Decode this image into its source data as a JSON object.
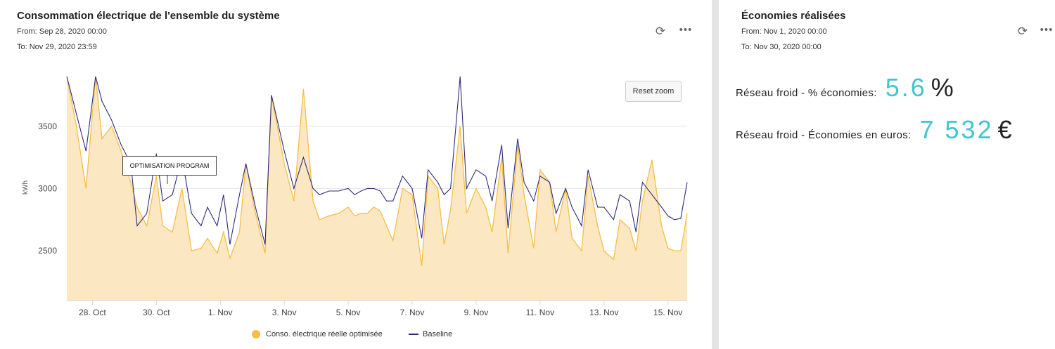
{
  "left_panel": {
    "title": "Consommation électrique de l'ensemble du système",
    "from": "From: Sep 28, 2020 00:00",
    "to": "To: Nov 29, 2020 23:59",
    "refresh_icon": "refresh-icon",
    "more_icon": "more-icon",
    "reset_zoom_label": "Reset zoom",
    "annotation_label": "OPTIMISATION PROGRAM"
  },
  "right_panel": {
    "title": "Économies réalisées",
    "from": "From: Nov 1, 2020 00:00",
    "to": "To: Nov 30, 2020 00:00",
    "kpis": [
      {
        "label": "Réseau froid - % économies:",
        "value": "5.6",
        "unit": "%"
      },
      {
        "label": "Réseau froid - Économies en euros:",
        "value": "7 532",
        "unit": "€"
      }
    ]
  },
  "colors": {
    "optimized_fill": "#fbe7c1",
    "optimized_line": "#f5bf47",
    "baseline": "#2e2a78",
    "accent": "#3fc6cf"
  },
  "chart_data": {
    "type": "area",
    "ylabel": "kWh",
    "yticks": [
      2500,
      3000,
      3500
    ],
    "ylim": [
      2100,
      3950
    ],
    "xticks": [
      "28. Oct",
      "30. Oct",
      "1. Nov",
      "3. Nov",
      "5. Nov",
      "7. Nov",
      "9. Nov",
      "11. Nov",
      "13. Nov",
      "15. Nov"
    ],
    "x_tick_days": [
      1,
      3,
      5,
      7,
      9,
      11,
      13,
      15,
      17,
      19
    ],
    "xlim": [
      0.2,
      19.6
    ],
    "legend_position": "bottom-center",
    "series": [
      {
        "name": "Conso. électrique réelle optimisée",
        "type": "area",
        "x": [
          0.2,
          0.5,
          0.8,
          1.1,
          1.3,
          1.6,
          1.9,
          2.2,
          2.4,
          2.7,
          3.0,
          3.2,
          3.5,
          3.8,
          4.1,
          4.4,
          4.6,
          4.9,
          5.1,
          5.3,
          5.6,
          5.8,
          6.1,
          6.4,
          6.6,
          7.0,
          7.3,
          7.6,
          7.9,
          8.1,
          8.4,
          8.7,
          9.0,
          9.2,
          9.4,
          9.6,
          9.8,
          10.0,
          10.2,
          10.4,
          10.7,
          11.0,
          11.3,
          11.5,
          11.8,
          12.0,
          12.2,
          12.5,
          12.7,
          13.0,
          13.3,
          13.5,
          13.8,
          14.0,
          14.3,
          14.5,
          14.8,
          15.0,
          15.3,
          15.5,
          15.8,
          16.0,
          16.3,
          16.5,
          16.8,
          17.0,
          17.3,
          17.5,
          17.8,
          18.0,
          18.2,
          18.5,
          18.8,
          19.0,
          19.2,
          19.4,
          19.6
        ],
        "values": [
          3900,
          3500,
          3000,
          3900,
          3400,
          3500,
          3300,
          3050,
          2850,
          2700,
          3100,
          2700,
          2650,
          3000,
          2500,
          2520,
          2600,
          2480,
          2650,
          2440,
          2650,
          3200,
          2800,
          2480,
          3750,
          3200,
          2900,
          3800,
          2900,
          2750,
          2780,
          2800,
          2850,
          2780,
          2800,
          2800,
          2850,
          2820,
          2700,
          2580,
          3000,
          2950,
          2380,
          3100,
          3000,
          2550,
          2830,
          3500,
          2800,
          3000,
          2850,
          2650,
          3250,
          2480,
          3350,
          2950,
          2520,
          3150,
          3050,
          2650,
          3000,
          2600,
          2500,
          3100,
          2700,
          2500,
          2430,
          2750,
          2680,
          2500,
          2900,
          3230,
          2700,
          2520,
          2500,
          2500,
          2800
        ]
      },
      {
        "name": "Baseline",
        "type": "line",
        "x": [
          0.2,
          0.5,
          0.8,
          1.1,
          1.3,
          1.6,
          1.9,
          2.2,
          2.4,
          2.7,
          3.0,
          3.2,
          3.5,
          3.8,
          4.1,
          4.4,
          4.6,
          4.9,
          5.1,
          5.3,
          5.6,
          5.8,
          6.1,
          6.4,
          6.6,
          7.0,
          7.3,
          7.6,
          7.9,
          8.1,
          8.4,
          8.7,
          9.0,
          9.2,
          9.4,
          9.6,
          9.8,
          10.0,
          10.2,
          10.4,
          10.7,
          11.0,
          11.3,
          11.5,
          11.8,
          12.0,
          12.2,
          12.5,
          12.7,
          13.0,
          13.3,
          13.5,
          13.8,
          14.0,
          14.3,
          14.5,
          14.8,
          15.0,
          15.3,
          15.5,
          15.8,
          16.0,
          16.3,
          16.5,
          16.8,
          17.0,
          17.3,
          17.5,
          17.8,
          18.0,
          18.2,
          18.5,
          18.8,
          19.0,
          19.2,
          19.4,
          19.6
        ],
        "values": [
          3900,
          3600,
          3300,
          3900,
          3700,
          3550,
          3350,
          3200,
          2700,
          2800,
          3280,
          2900,
          2950,
          3250,
          2800,
          2700,
          2850,
          2700,
          2950,
          2550,
          2950,
          3200,
          2850,
          2550,
          3750,
          3300,
          3000,
          3250,
          3000,
          2950,
          2980,
          2980,
          3000,
          2950,
          2980,
          3000,
          3000,
          2980,
          2900,
          2900,
          3100,
          3000,
          2600,
          3150,
          3050,
          2950,
          3000,
          3900,
          3000,
          3150,
          3100,
          2900,
          3350,
          2680,
          3400,
          3050,
          2900,
          3100,
          3050,
          2800,
          3000,
          2850,
          2700,
          3150,
          2850,
          2850,
          2750,
          2950,
          2900,
          2650,
          3050,
          2950,
          2850,
          2780,
          2750,
          2760,
          3050
        ]
      }
    ]
  }
}
